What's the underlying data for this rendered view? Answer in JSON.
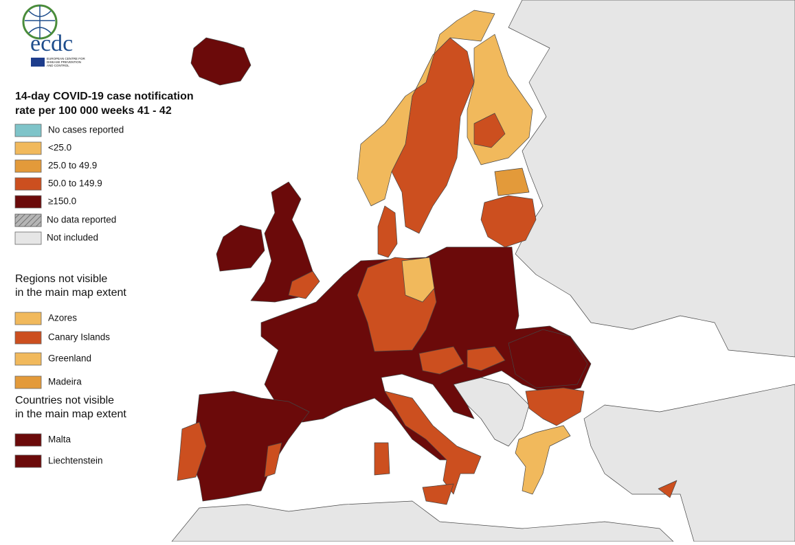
{
  "logo": {
    "name": "ecdc",
    "org": [
      "EUROPEAN CENTRE FOR",
      "DISEASE PREVENTION",
      "AND CONTROL"
    ]
  },
  "legend": {
    "title": [
      "14-day COVID-19 case notification",
      "rate per 100 000 weeks 41 - 42"
    ],
    "items": [
      {
        "label": "No cases reported",
        "color": "#7fc4c9"
      },
      {
        "label": "<25.0",
        "color": "#f1b95c"
      },
      {
        "label": "25.0 to 49.9",
        "color": "#e39a3a"
      },
      {
        "label": "50.0 to 149.9",
        "color": "#cc4f1f"
      },
      {
        "label": "≥150.0",
        "color": "#6b0a0a"
      },
      {
        "label": "No data reported",
        "color": "#b5b5b5"
      },
      {
        "label": "Not included",
        "color": "#e6e6e6"
      }
    ]
  },
  "regions": {
    "title": [
      "Regions not visible",
      "in the main map extent"
    ],
    "items": [
      {
        "label": "Azores",
        "color": "#f1b95c"
      },
      {
        "label": "Canary Islands",
        "color": "#cc4f1f"
      },
      {
        "label": "Greenland",
        "color": "#f1b95c"
      },
      {
        "label": "Madeira",
        "color": "#e39a3a"
      }
    ]
  },
  "countries": {
    "title": [
      "Countries not visible",
      "in the main map extent"
    ],
    "items": [
      {
        "label": "Malta",
        "color": "#6b0a0a"
      },
      {
        "label": "Liechtenstein",
        "color": "#6b0a0a"
      }
    ]
  }
}
